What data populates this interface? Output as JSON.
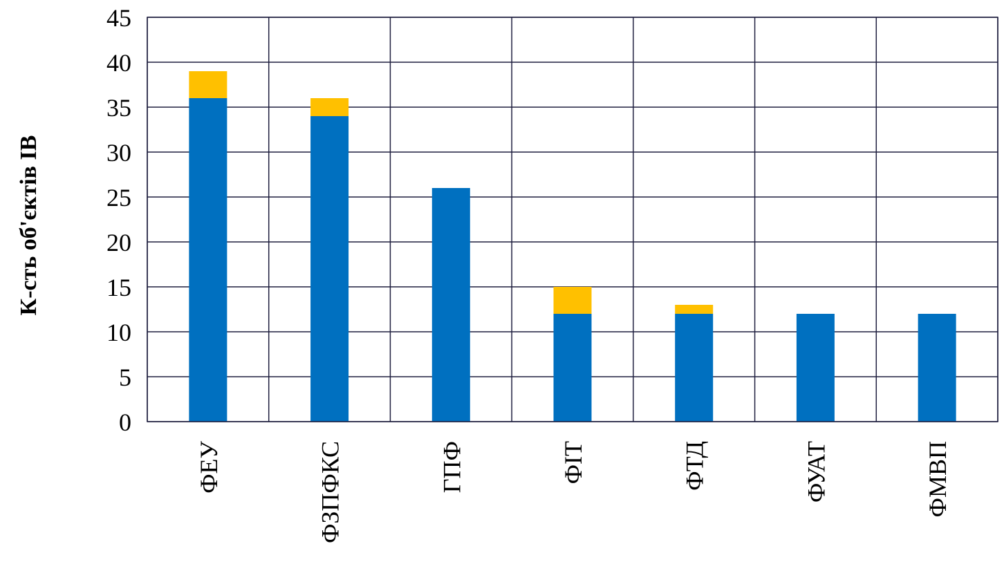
{
  "chart_data": {
    "type": "bar",
    "stacked": true,
    "title": "",
    "xlabel": "",
    "ylabel": "К-сть об'єктів ІВ",
    "categories": [
      "ФЕУ",
      "ФЗПФКС",
      "ГПФ",
      "ФІТ",
      "ФТД",
      "ФУАТ",
      "ФМВП"
    ],
    "series": [
      {
        "values": [
          36,
          34,
          26,
          12,
          12,
          12,
          12
        ],
        "color": "#0070C0"
      },
      {
        "values": [
          3,
          2,
          0,
          3,
          1,
          0,
          0
        ],
        "color": "#FFC000"
      }
    ],
    "ylim": [
      0,
      45
    ],
    "yticks": [
      "0",
      "5",
      "10",
      "15",
      "20",
      "25",
      "30",
      "35",
      "40",
      "45"
    ],
    "grid": true,
    "legend": "none",
    "colors": {
      "grid": "#1F1F3F",
      "text": "#000000"
    }
  }
}
